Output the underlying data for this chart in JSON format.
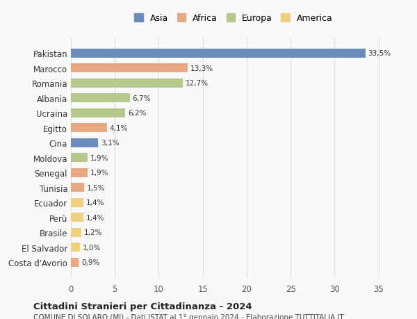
{
  "countries": [
    "Pakistan",
    "Marocco",
    "Romania",
    "Albania",
    "Ucraina",
    "Egitto",
    "Cina",
    "Moldova",
    "Senegal",
    "Tunisia",
    "Ecuador",
    "Perù",
    "Brasile",
    "El Salvador",
    "Costa d'Avorio"
  ],
  "values": [
    33.5,
    13.3,
    12.7,
    6.7,
    6.2,
    4.1,
    3.1,
    1.9,
    1.9,
    1.5,
    1.4,
    1.4,
    1.2,
    1.0,
    0.9
  ],
  "labels": [
    "33,5%",
    "13,3%",
    "12,7%",
    "6,7%",
    "6,2%",
    "4,1%",
    "3,1%",
    "1,9%",
    "1,9%",
    "1,5%",
    "1,4%",
    "1,4%",
    "1,2%",
    "1,0%",
    "0,9%"
  ],
  "continents": [
    "Asia",
    "Africa",
    "Europa",
    "Europa",
    "Europa",
    "Africa",
    "Asia",
    "Europa",
    "Africa",
    "Africa",
    "America",
    "America",
    "America",
    "America",
    "Africa"
  ],
  "colors": {
    "Asia": "#6b8cba",
    "Africa": "#e8a882",
    "Europa": "#b5c98e",
    "America": "#f0d080"
  },
  "legend_order": [
    "Asia",
    "Africa",
    "Europa",
    "America"
  ],
  "xlim": [
    0,
    37
  ],
  "xticks": [
    0,
    5,
    10,
    15,
    20,
    25,
    30,
    35
  ],
  "title": "Cittadini Stranieri per Cittadinanza - 2024",
  "subtitle": "COMUNE DI SOLARO (MI) - Dati ISTAT al 1° gennaio 2024 - Elaborazione TUTTITALIA.IT",
  "bg_color": "#f9f9f9",
  "bar_height": 0.6,
  "grid_color": "#dddddd"
}
